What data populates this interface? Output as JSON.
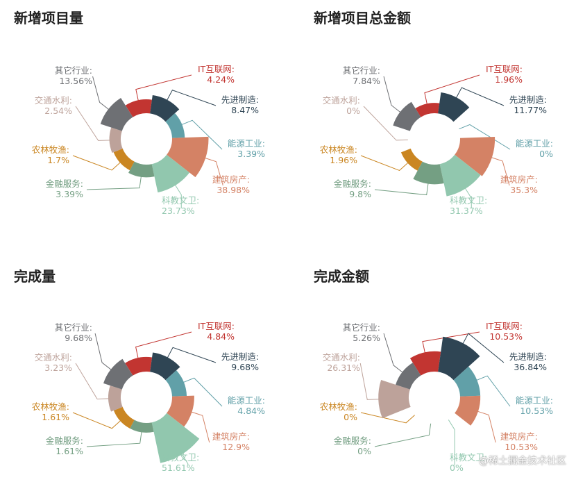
{
  "categories": [
    "IT互联网",
    "先进制造",
    "能源工业",
    "建筑房产",
    "科教文卫",
    "金融服务",
    "农林牧渔",
    "交通水利",
    "其它行业"
  ],
  "colors": [
    "#c23531",
    "#2f4554",
    "#61a0a8",
    "#d48265",
    "#91c7ae",
    "#749f83",
    "#ca8622",
    "#bda29a",
    "#6e7074"
  ],
  "watermark": "@稀土掘金技术社区",
  "chart_data": [
    {
      "type": "pie",
      "variant": "rose",
      "title": "新增项目量",
      "categories": [
        "IT互联网",
        "先进制造",
        "能源工业",
        "建筑房产",
        "科教文卫",
        "金融服务",
        "农林牧渔",
        "交通水利",
        "其它行业"
      ],
      "values": [
        4.24,
        8.47,
        3.39,
        38.98,
        23.73,
        3.39,
        1.7,
        2.54,
        13.56
      ],
      "value_labels": [
        "4.24%",
        "8.47%",
        "3.39%",
        "38.98%",
        "23.73%",
        "3.39%",
        "1.7%",
        "2.54%",
        "13.56%"
      ]
    },
    {
      "type": "pie",
      "variant": "rose",
      "title": "新增项目总金额",
      "categories": [
        "IT互联网",
        "先进制造",
        "能源工业",
        "建筑房产",
        "科教文卫",
        "金融服务",
        "农林牧渔",
        "交通水利",
        "其它行业"
      ],
      "values": [
        1.96,
        11.77,
        0,
        35.3,
        31.37,
        9.8,
        1.96,
        0,
        7.84
      ],
      "value_labels": [
        "1.96%",
        "11.77%",
        "0%",
        "35.3%",
        "31.37%",
        "9.8%",
        "1.96%",
        "0%",
        "7.84%"
      ]
    },
    {
      "type": "pie",
      "variant": "rose",
      "title": "完成量",
      "categories": [
        "IT互联网",
        "先进制造",
        "能源工业",
        "建筑房产",
        "科教文卫",
        "金融服务",
        "农林牧渔",
        "交通水利",
        "其它行业"
      ],
      "values": [
        4.84,
        9.68,
        4.84,
        12.9,
        51.61,
        1.61,
        1.61,
        3.23,
        9.68
      ],
      "value_labels": [
        "4.84%",
        "9.68%",
        "4.84%",
        "12.9%",
        "51.61%",
        "1.61%",
        "1.61%",
        "3.23%",
        "9.68%"
      ]
    },
    {
      "type": "pie",
      "variant": "rose",
      "title": "完成金额",
      "categories": [
        "IT互联网",
        "先进制造",
        "能源工业",
        "建筑房产",
        "科教文卫",
        "金融服务",
        "农林牧渔",
        "交通水利",
        "其它行业"
      ],
      "values": [
        10.53,
        36.84,
        10.53,
        10.53,
        0,
        0,
        0,
        26.31,
        5.26
      ],
      "value_labels": [
        "10.53%",
        "36.84%",
        "10.53%",
        "10.53%",
        "0%",
        "0%",
        "0%",
        "26.31%",
        "5.26%"
      ]
    }
  ]
}
